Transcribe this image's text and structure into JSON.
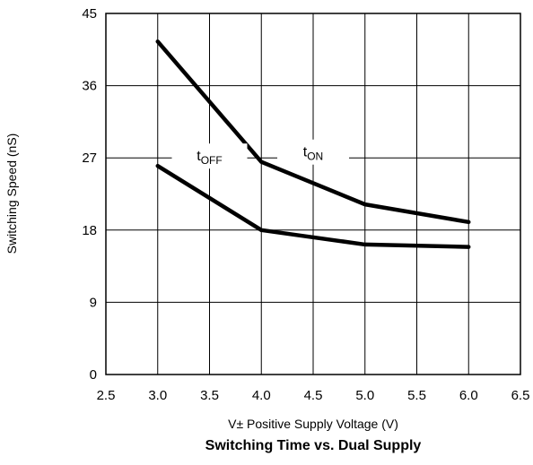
{
  "chart_data": {
    "type": "line",
    "title": "Switching Time vs. Dual Supply",
    "xlabel": "V± Positive Supply Voltage (V)",
    "ylabel": "Switching Speed (nS)",
    "xlim": [
      2.5,
      6.5
    ],
    "ylim": [
      0,
      45
    ],
    "x_ticks": [
      2.5,
      3.0,
      3.5,
      4.0,
      4.5,
      5.0,
      5.5,
      6.0,
      6.5
    ],
    "x_tick_labels": [
      "2.5",
      "3.0",
      "3.5",
      "4.0",
      "4.5",
      "5.0",
      "5.5",
      "6.0",
      "6.5"
    ],
    "y_ticks": [
      0,
      9,
      18,
      27,
      36,
      45
    ],
    "y_tick_labels": [
      "0",
      "9",
      "18",
      "27",
      "36",
      "45"
    ],
    "grid": true,
    "series": [
      {
        "name": "tON",
        "label_main": "t",
        "label_sub": "ON",
        "color": "#000000",
        "x": [
          3.0,
          4.0,
          5.0,
          6.0
        ],
        "values": [
          41.5,
          26.5,
          21.2,
          19.0
        ]
      },
      {
        "name": "tOFF",
        "label_main": "t",
        "label_sub": "OFF",
        "color": "#000000",
        "x": [
          3.0,
          4.0,
          5.0,
          6.0
        ],
        "values": [
          26.0,
          18.0,
          16.2,
          15.9
        ]
      }
    ]
  }
}
